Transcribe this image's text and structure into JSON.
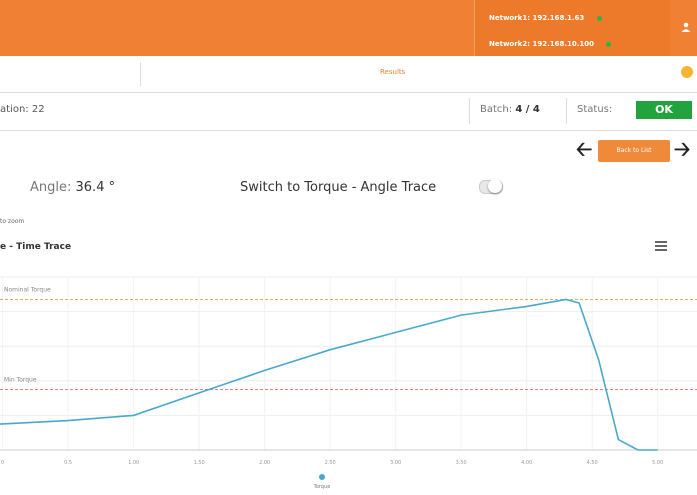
{
  "header": {
    "networks": [
      {
        "label": "Network1:",
        "address": "192.168.1.63"
      },
      {
        "label": "Network2:",
        "address": "192.168.10.100"
      }
    ],
    "status_dot_color": "#2db34a",
    "user_icon": "user-icon"
  },
  "tabs": {
    "active_label": "Results",
    "alert_icon": "alert-icon"
  },
  "info": {
    "station_label": "ation:",
    "station_value": "22",
    "batch_label": "Batch:",
    "batch_value": "4 / 4",
    "status_label": "Status:",
    "status_value": "OK",
    "status_color": "#22a33d"
  },
  "nav": {
    "back_label": "Back to List",
    "prev_icon": "arrow-left-icon",
    "next_icon": "arrow-right-icon"
  },
  "measurement": {
    "angle_label": "Angle:",
    "angle_value": "36.4 °",
    "switch_label": "Switch to Torque - Angle Trace"
  },
  "chart_header": {
    "zoom_note": "to zoom",
    "title": "e - Time Trace",
    "menu_icon": "menu-icon"
  },
  "chart_data": {
    "type": "line",
    "x_ticks": [
      "0",
      "0.5",
      "1.00",
      "1.50",
      "2.00",
      "2.50",
      "3.00",
      "3.50",
      "4.00",
      "4.50",
      "5.00"
    ],
    "xlim": [
      -0.02,
      5.3
    ],
    "ylim": [
      0,
      100
    ],
    "series": [
      {
        "name": "Torque",
        "color": "#4aa8cf",
        "points": [
          [
            -0.02,
            15
          ],
          [
            0.5,
            17
          ],
          [
            1.0,
            20
          ],
          [
            1.5,
            33
          ],
          [
            2.0,
            46
          ],
          [
            2.5,
            58
          ],
          [
            3.0,
            68
          ],
          [
            3.5,
            78
          ],
          [
            4.0,
            83
          ],
          [
            4.3,
            87
          ],
          [
            4.4,
            85
          ],
          [
            4.55,
            52
          ],
          [
            4.7,
            6
          ],
          [
            4.85,
            0
          ],
          [
            5.0,
            0
          ]
        ]
      }
    ],
    "thresholds": [
      {
        "label": "Nominal Torque",
        "value": 87,
        "color": "#c9b860"
      },
      {
        "label": "Min Torque",
        "value": 35,
        "color": "#d9867a"
      }
    ],
    "legend": {
      "label": "Torque",
      "color": "#4aa8cf",
      "placement": "bottom"
    }
  }
}
